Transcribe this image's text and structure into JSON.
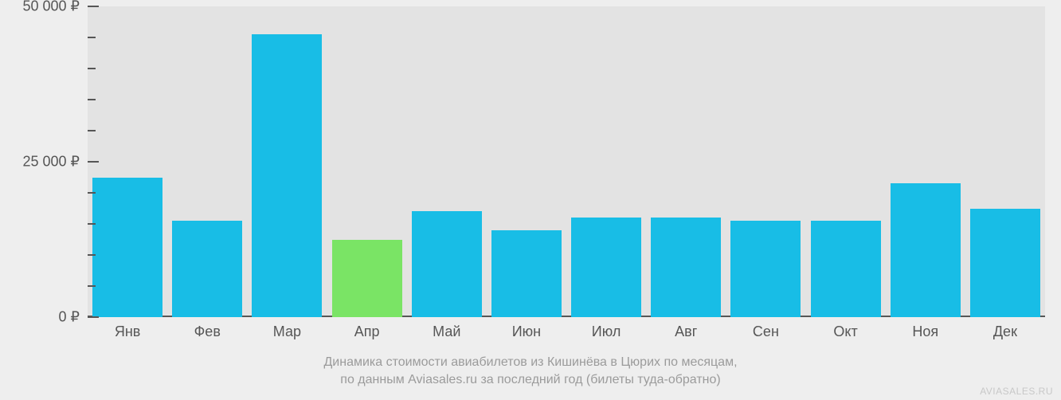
{
  "chart": {
    "type": "bar",
    "background_color": "#eeeeee",
    "plot_background_color": "#e3e3e3",
    "baseline_color": "#565656",
    "tick_color": "#565656",
    "axis_label_color": "#565656",
    "caption_color": "#9b9b9b",
    "attribution_color": "#c8c8c8",
    "bar_color_default": "#18bde6",
    "bar_color_highlight": "#7ae465",
    "y_axis": {
      "min": 0,
      "max": 50000,
      "major_ticks": [
        0,
        25000,
        50000
      ],
      "major_labels": [
        "0 ₽",
        "25 000 ₽",
        "50 000 ₽"
      ],
      "minor_step": 5000,
      "label_fontsize": 18
    },
    "x_axis": {
      "labels": [
        "Янв",
        "Фев",
        "Мар",
        "Апр",
        "Май",
        "Июн",
        "Июл",
        "Авг",
        "Сен",
        "Окт",
        "Ноя",
        "Дек"
      ],
      "label_fontsize": 18
    },
    "bars": [
      {
        "month": "Янв",
        "value": 22500,
        "highlight": false
      },
      {
        "month": "Фев",
        "value": 15500,
        "highlight": false
      },
      {
        "month": "Мар",
        "value": 45500,
        "highlight": false
      },
      {
        "month": "Апр",
        "value": 12500,
        "highlight": true
      },
      {
        "month": "Май",
        "value": 17000,
        "highlight": false
      },
      {
        "month": "Июн",
        "value": 14000,
        "highlight": false
      },
      {
        "month": "Июл",
        "value": 16000,
        "highlight": false
      },
      {
        "month": "Авг",
        "value": 16000,
        "highlight": false
      },
      {
        "month": "Сен",
        "value": 15500,
        "highlight": false
      },
      {
        "month": "Окт",
        "value": 15500,
        "highlight": false
      },
      {
        "month": "Ноя",
        "value": 21500,
        "highlight": false
      },
      {
        "month": "Дек",
        "value": 17500,
        "highlight": false
      }
    ],
    "caption_line1": "Динамика стоимости авиабилетов из Кишинёва в Цюрих по месяцам,",
    "caption_line2": "по данным Aviasales.ru за последний год (билеты туда-обратно)",
    "attribution": "AVIASALES.RU"
  }
}
